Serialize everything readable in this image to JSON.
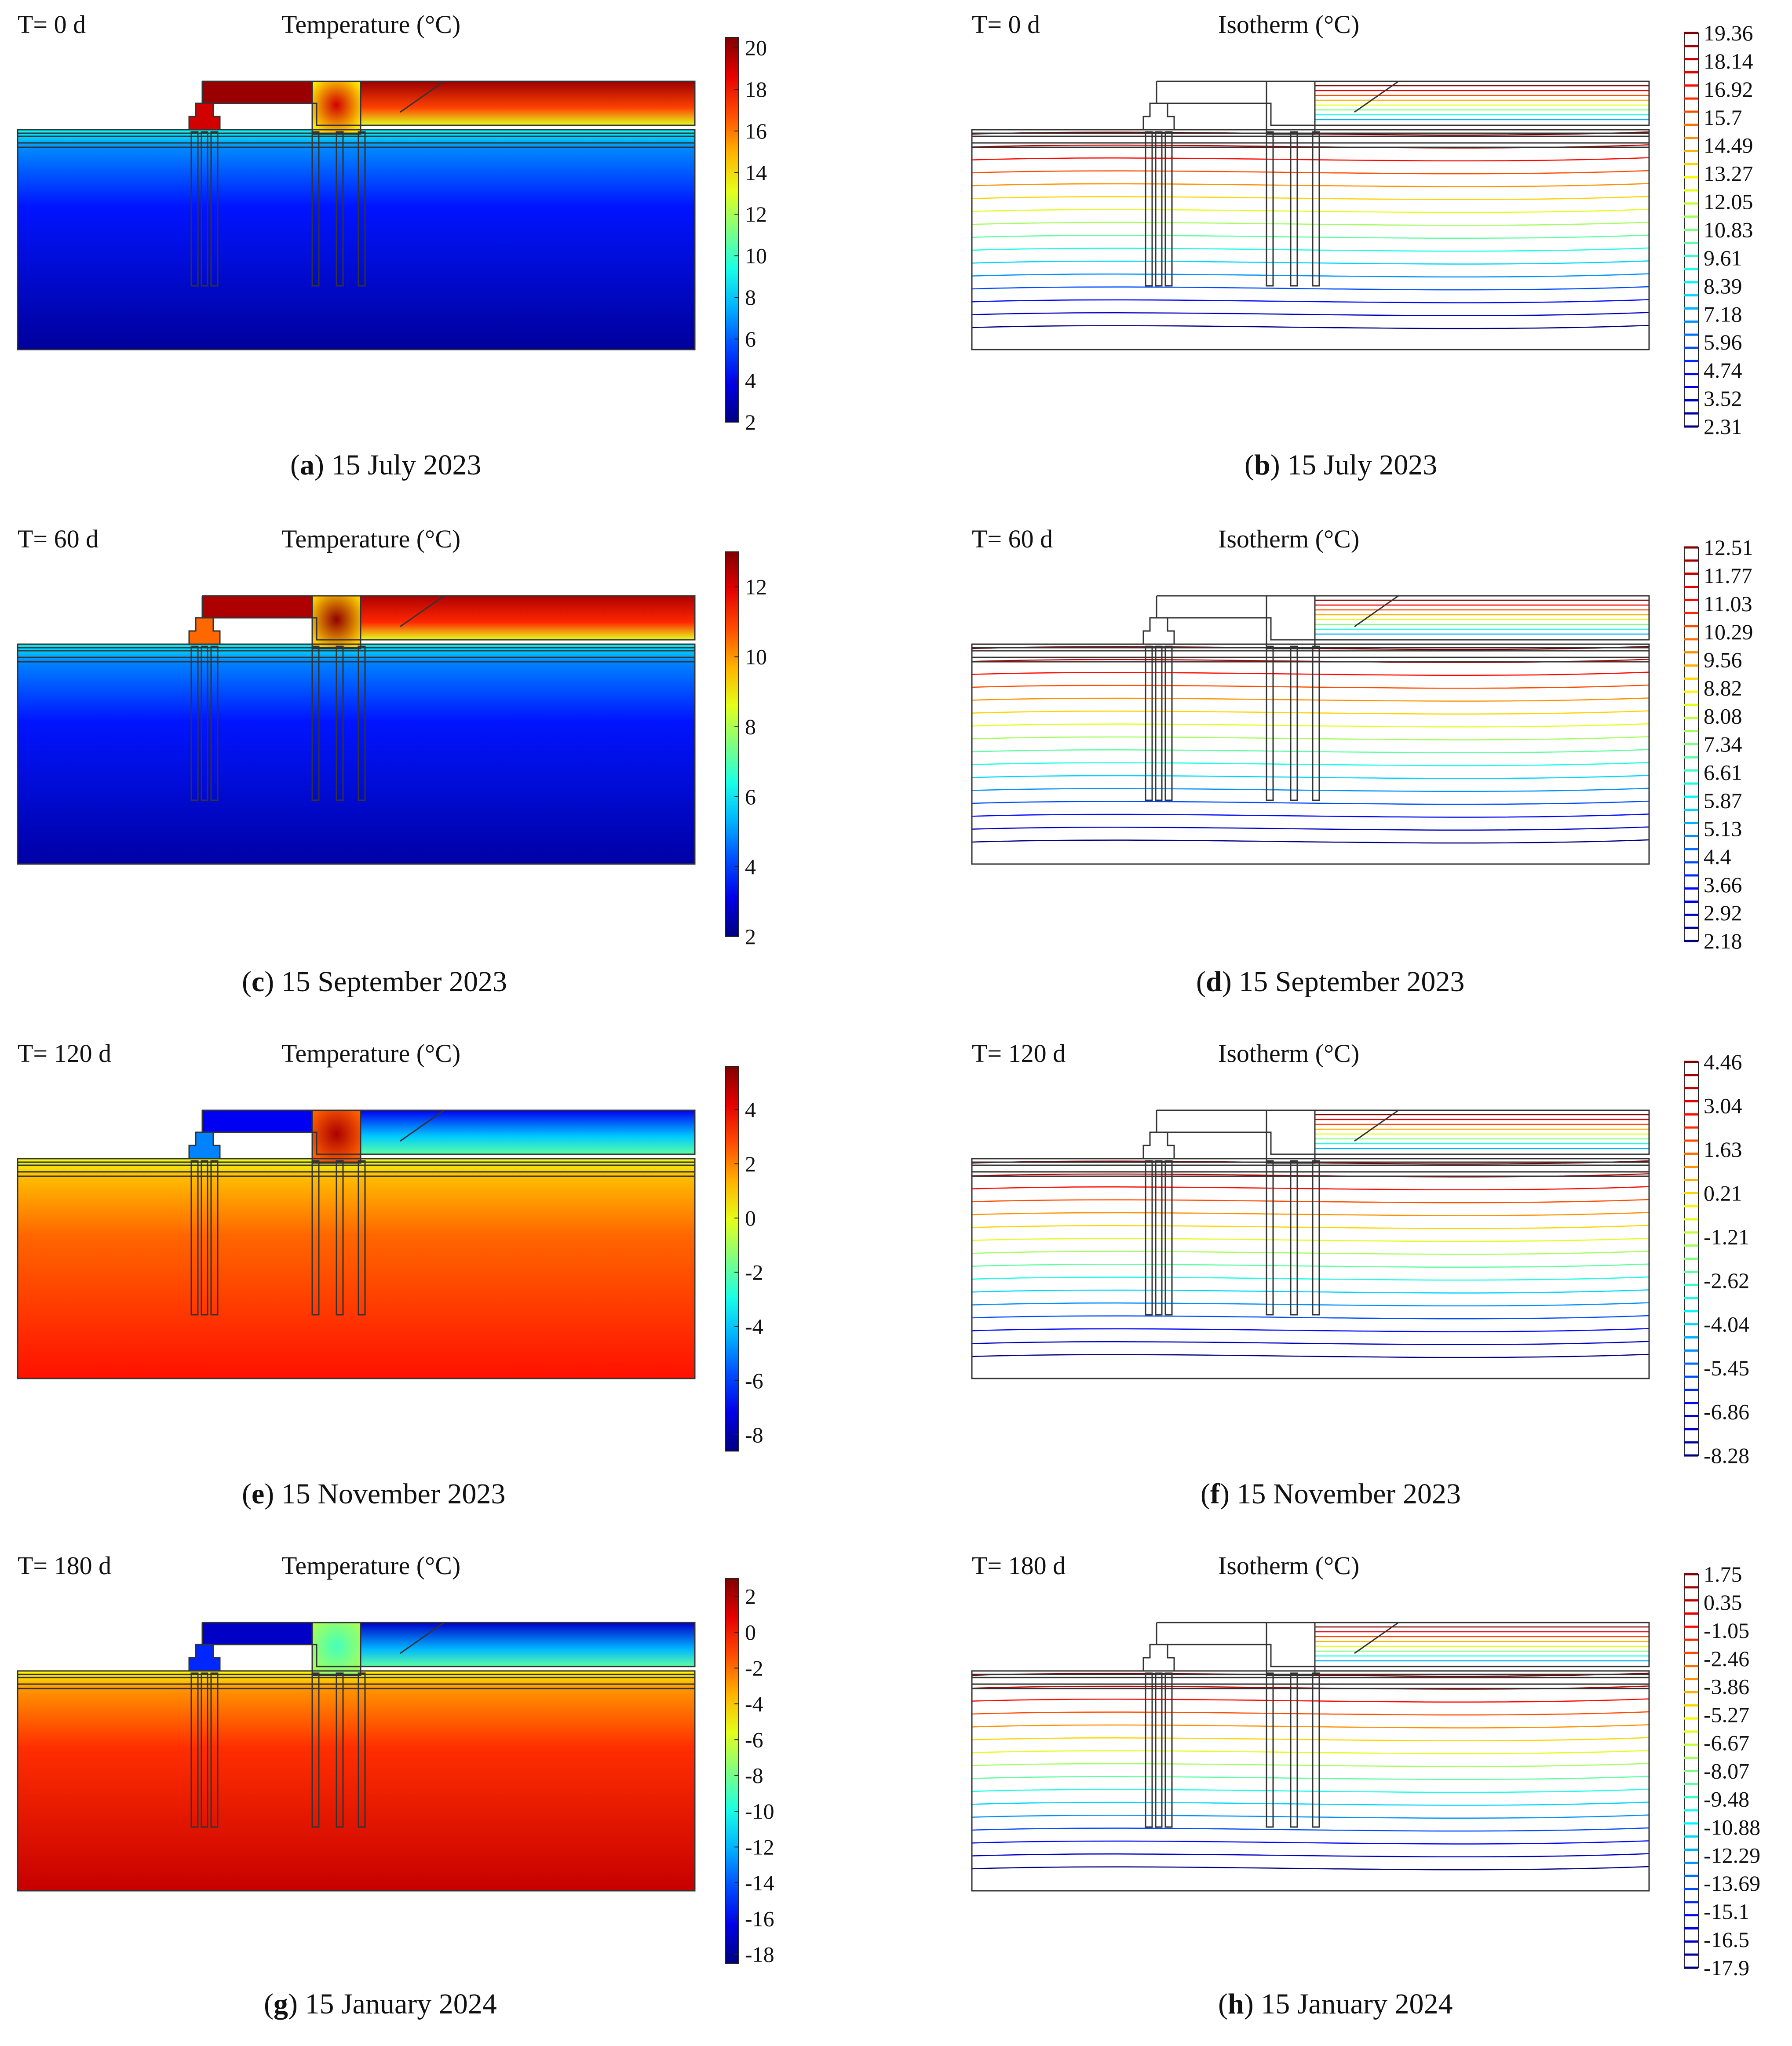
{
  "chart_data": [
    {
      "id": "a",
      "type": "heatmap",
      "mode": "temperature",
      "caption_letter": "a",
      "caption_date": "15 July 2023",
      "time_label": "T= 0 d",
      "title": "Temperature (°C)",
      "colorbar_ticks": [
        "20",
        "18",
        "16",
        "14",
        "12",
        "10",
        "8",
        "6",
        "4",
        "2"
      ],
      "range": [
        2,
        20.5
      ],
      "levels": {
        "deep": 2.5,
        "upper": 9,
        "roof": 17,
        "roof_hot": 20,
        "pile_cap": 19,
        "small_cap": 19
      }
    },
    {
      "id": "b",
      "type": "heatmap",
      "mode": "isotherm",
      "caption_letter": "b",
      "caption_date": "15 July 2023",
      "time_label": "T= 0 d",
      "title": "Isotherm (°C)",
      "colorbar_ticks": [
        "19.36",
        "18.14",
        "16.92",
        "15.7",
        "14.49",
        "13.27",
        "12.05",
        "10.83",
        "9.61",
        "8.39",
        "7.18",
        "5.96",
        "4.74",
        "3.52",
        "2.31"
      ],
      "range": [
        2.31,
        19.36
      ]
    },
    {
      "id": "c",
      "type": "heatmap",
      "mode": "temperature",
      "caption_letter": "c",
      "caption_date": "15 September 2023",
      "time_label": "T= 60 d",
      "title": "Temperature (°C)",
      "colorbar_ticks": [
        "12",
        "10",
        "8",
        "6",
        "4",
        "2"
      ],
      "range": [
        2,
        13
      ],
      "levels": {
        "deep": 2.4,
        "upper": 6,
        "roof": 11.2,
        "roof_hot": 12.5,
        "pile_cap": 12.8,
        "small_cap": 10.5
      }
    },
    {
      "id": "d",
      "type": "heatmap",
      "mode": "isotherm",
      "caption_letter": "d",
      "caption_date": "15 September 2023",
      "time_label": "T= 60 d",
      "title": "Isotherm (°C)",
      "colorbar_ticks": [
        "12.51",
        "11.77",
        "11.03",
        "10.29",
        "9.56",
        "8.82",
        "8.08",
        "7.34",
        "6.61",
        "5.87",
        "5.13",
        "4.4",
        "3.66",
        "2.92",
        "2.18"
      ],
      "range": [
        2.18,
        12.51
      ]
    },
    {
      "id": "e",
      "type": "heatmap",
      "mode": "temperature",
      "caption_letter": "e",
      "caption_date": "15 November 2023",
      "time_label": "T= 120 d",
      "title": "Temperature (°C)",
      "colorbar_ticks": [
        "4",
        "2",
        "0",
        "-2",
        "-4",
        "-6",
        "-8"
      ],
      "range": [
        -8.6,
        5.6
      ],
      "levels": {
        "deep": 3.6,
        "upper": 0,
        "roof": -4,
        "roof_hot": -7,
        "pile_cap": 5,
        "small_cap": -5
      }
    },
    {
      "id": "f",
      "type": "heatmap",
      "mode": "isotherm",
      "caption_letter": "f",
      "caption_date": "15 November 2023",
      "time_label": "T= 120 d",
      "title": "Isotherm (°C)",
      "colorbar_ticks": [
        "4.46",
        "3.04",
        "1.63",
        "0.21",
        "-1.21",
        "-2.62",
        "-4.04",
        "-5.45",
        "-6.86",
        "-8.28"
      ],
      "range": [
        -8.28,
        4.46
      ]
    },
    {
      "id": "g",
      "type": "heatmap",
      "mode": "temperature",
      "caption_letter": "g",
      "caption_date": "15 January 2024",
      "time_label": "T= 180 d",
      "title": "Temperature (°C)",
      "colorbar_ticks": [
        "2",
        "0",
        "-2",
        "-4",
        "-6",
        "-8",
        "-10",
        "-12",
        "-14",
        "-16",
        "-18"
      ],
      "range": [
        -18.5,
        3
      ],
      "levels": {
        "deep": 1.5,
        "upper": -5,
        "roof": -12,
        "roof_hot": -17,
        "pile_cap": -9,
        "small_cap": -15
      }
    },
    {
      "id": "h",
      "type": "heatmap",
      "mode": "isotherm",
      "caption_letter": "h",
      "caption_date": "15 January 2024",
      "time_label": "T= 180 d",
      "title": "Isotherm (°C)",
      "colorbar_ticks": [
        "1.75",
        "0.35",
        "-1.05",
        "-2.46",
        "-3.86",
        "-5.27",
        "-6.67",
        "-8.07",
        "-9.48",
        "-10.88",
        "-12.29",
        "-13.69",
        "-15.1",
        "-16.5",
        "-17.9"
      ],
      "range": [
        -17.9,
        1.75
      ]
    }
  ]
}
